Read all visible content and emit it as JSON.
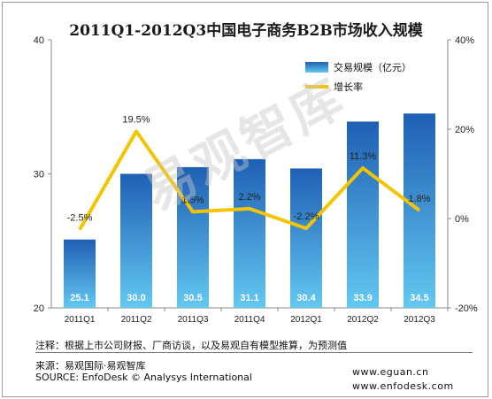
{
  "chart_data": {
    "type": "bar",
    "title": "2011Q1-2012Q3中国电子商务B2B市场收入规模",
    "categories": [
      "2011Q1",
      "2011Q2",
      "2011Q3",
      "2011Q4",
      "2012Q1",
      "2012Q2",
      "2012Q3"
    ],
    "series": [
      {
        "name": "交易规模（亿元）",
        "type": "bar",
        "axis": "left",
        "values": [
          25.1,
          30.0,
          30.5,
          31.1,
          30.4,
          33.9,
          34.5
        ],
        "labels": [
          "25.1",
          "30.0",
          "30.5",
          "31.1",
          "30.4",
          "33.9",
          "34.5"
        ]
      },
      {
        "name": "增长率",
        "type": "line",
        "axis": "right",
        "values": [
          -2.5,
          19.5,
          1.5,
          2.2,
          -2.2,
          11.3,
          1.8
        ],
        "labels": [
          "-2.5%",
          "19.5%",
          "1.5%",
          "2.2%",
          "-2.2%",
          "11.3%",
          "1.8%"
        ]
      }
    ],
    "ylim": [
      20,
      40
    ],
    "y_ticks": [
      "20",
      "30",
      "40"
    ],
    "y2lim": [
      -20,
      40
    ],
    "y2_ticks": [
      "-20%",
      "0%",
      "20%",
      "40%"
    ],
    "legend_position": "top-right",
    "grid": false,
    "colors": {
      "bar_top": "#1f5fb4",
      "bar_bottom": "#63c8f0",
      "line": "#f5c400"
    }
  },
  "footer": {
    "note": "注释：根据上市公司财报、厂商访谈，以及易观自有模型推算，为预测值",
    "source_cn": "来源：易观国际·易观智库",
    "source_en": "SOURCE: EnfoDesk © Analysys International",
    "web1": "www.eguan.cn",
    "web2": "www.enfodesk.com"
  },
  "watermark": "易观智库"
}
